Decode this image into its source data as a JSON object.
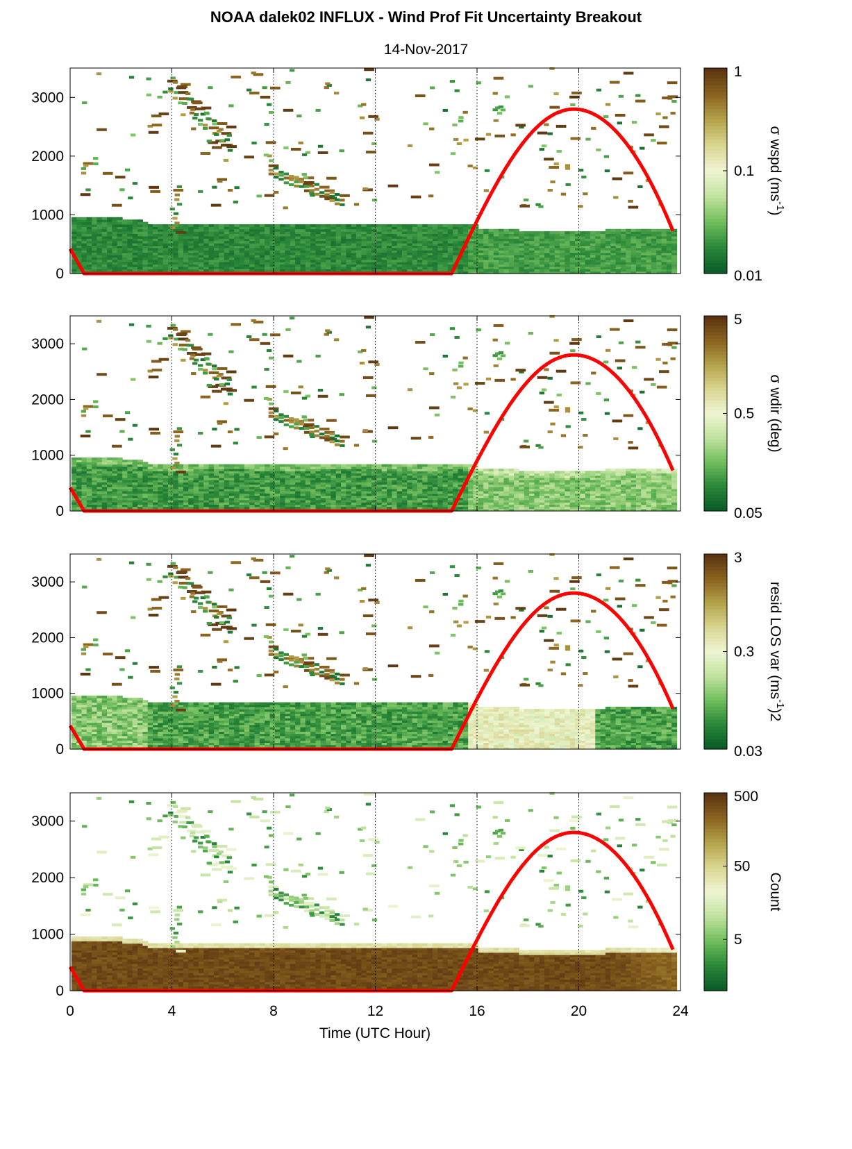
{
  "figure": {
    "title": "NOAA dalek02 INFLUX - Wind Prof Fit Uncertainty Breakout",
    "date": "14-Nov-2017",
    "xlabel": "Time (UTC Hour)"
  },
  "chart_data": [
    {
      "type": "heatmap",
      "panel": 1,
      "x_range": [
        0,
        24
      ],
      "xticks": [
        0,
        4,
        8,
        12,
        16,
        20,
        24
      ],
      "y_range": [
        0,
        3500
      ],
      "yticks": [
        0,
        1000,
        2000,
        3000
      ],
      "colorbar": {
        "label": "σ wspd (ms-1)",
        "label_main": "σ wspd (ms",
        "label_sup": "-1",
        "label_end": ")",
        "scale": "log",
        "ticks": [
          "1",
          "0.1",
          "0.01"
        ],
        "min": 0.01,
        "max": 1
      },
      "overlay_line": {
        "color": "#ff0000",
        "peak_hour": 19.8,
        "peak_height": 2800,
        "rise_hour": 15.0,
        "end_hour": 23.7
      },
      "gridlines": {
        "x": [
          4,
          8,
          12,
          16,
          20
        ],
        "style": "dotted"
      }
    },
    {
      "type": "heatmap",
      "panel": 2,
      "x_range": [
        0,
        24
      ],
      "xticks": [
        0,
        4,
        8,
        12,
        16,
        20,
        24
      ],
      "y_range": [
        0,
        3500
      ],
      "yticks": [
        0,
        1000,
        2000,
        3000
      ],
      "colorbar": {
        "label": "σ wdir (deg)",
        "label_main": "σ wdir (deg)",
        "label_sup": "",
        "label_end": "",
        "scale": "log",
        "ticks": [
          "5",
          "0.5",
          "0.05"
        ],
        "min": 0.05,
        "max": 5
      },
      "overlay_line": {
        "color": "#ff0000",
        "peak_hour": 19.8,
        "peak_height": 2800,
        "rise_hour": 15.0,
        "end_hour": 23.7
      },
      "gridlines": {
        "x": [
          4,
          8,
          12,
          16,
          20
        ],
        "style": "dotted"
      }
    },
    {
      "type": "heatmap",
      "panel": 3,
      "x_range": [
        0,
        24
      ],
      "xticks": [
        0,
        4,
        8,
        12,
        16,
        20,
        24
      ],
      "y_range": [
        0,
        3500
      ],
      "yticks": [
        0,
        1000,
        2000,
        3000
      ],
      "colorbar": {
        "label": "resid LOS var (ms-1)2",
        "label_main": "resid LOS var (ms",
        "label_sup": "-1",
        "label_end": ")2",
        "scale": "log",
        "ticks": [
          "3",
          "0.3",
          "0.03"
        ],
        "min": 0.03,
        "max": 3
      },
      "overlay_line": {
        "color": "#ff0000",
        "peak_hour": 19.8,
        "peak_height": 2800,
        "rise_hour": 15.0,
        "end_hour": 23.7
      },
      "gridlines": {
        "x": [
          4,
          8,
          12,
          16,
          20
        ],
        "style": "dotted"
      }
    },
    {
      "type": "heatmap",
      "panel": 4,
      "x_range": [
        0,
        24
      ],
      "xticks": [
        0,
        4,
        8,
        12,
        16,
        20,
        24
      ],
      "y_range": [
        0,
        3500
      ],
      "yticks": [
        0,
        1000,
        2000,
        3000
      ],
      "colorbar": {
        "label": "Count",
        "label_main": "Count",
        "label_sup": "",
        "label_end": "",
        "scale": "log",
        "ticks": [
          "500",
          "50",
          "5"
        ],
        "min": 1,
        "max": 500
      },
      "overlay_line": {
        "color": "#ff0000",
        "peak_hour": 19.8,
        "peak_height": 2800,
        "rise_hour": 15.0,
        "end_hour": 23.7
      },
      "gridlines": {
        "x": [
          4,
          8,
          12,
          16,
          20
        ],
        "style": "dotted"
      }
    }
  ],
  "colormap": [
    "#0b5c28",
    "#2c8a3a",
    "#74bf5f",
    "#c2e3a0",
    "#eef5d2",
    "#d9d692",
    "#b5a34b",
    "#8b6420",
    "#5a3410"
  ]
}
